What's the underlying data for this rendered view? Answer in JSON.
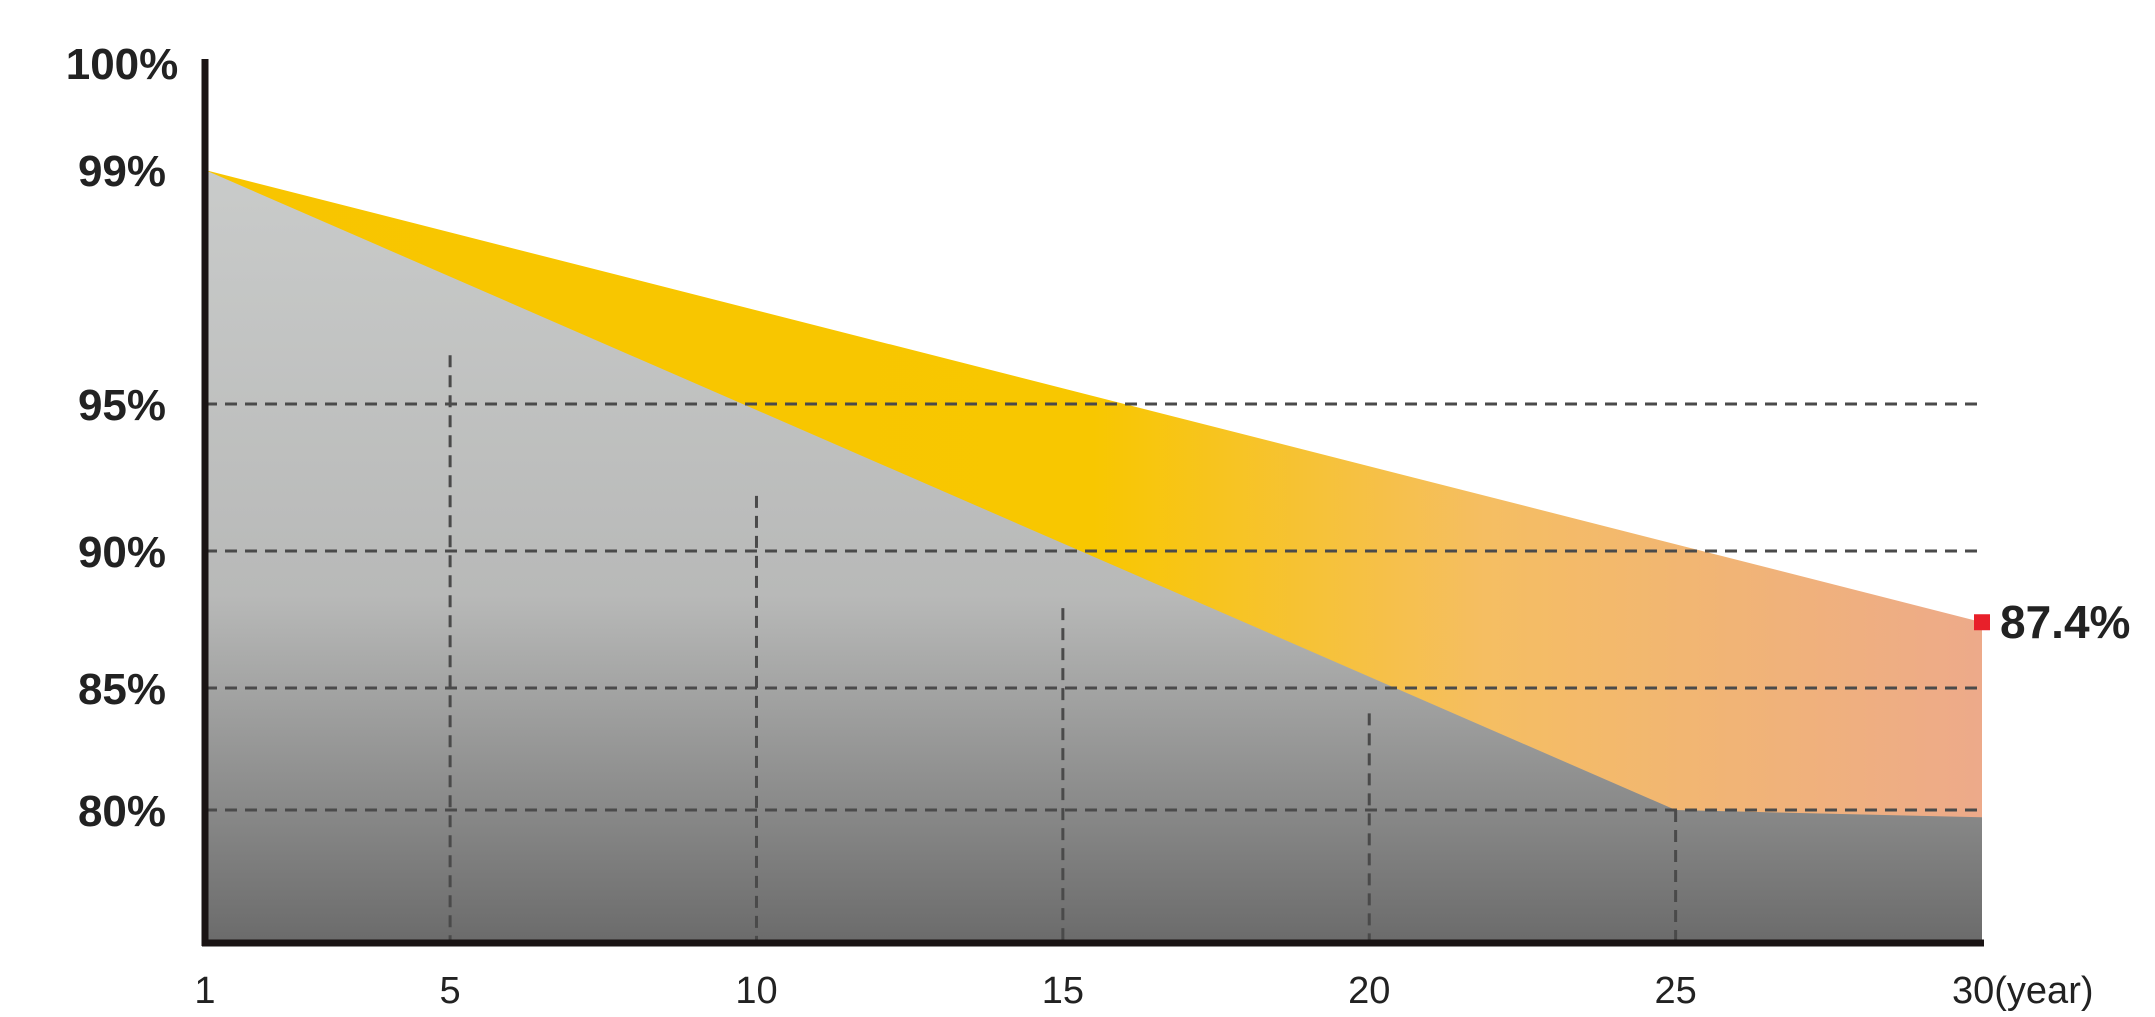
{
  "chart_data": {
    "type": "area",
    "x_unit_label": "(year)",
    "x_ticks": [
      1,
      5,
      10,
      15,
      20,
      25,
      30
    ],
    "y_ticks": [
      80,
      85,
      90,
      95,
      99,
      100
    ],
    "y_tick_labels": [
      "80%",
      "85%",
      "90%",
      "95%",
      "99%",
      "100%"
    ],
    "x_min": 1,
    "x_max": 30,
    "y_min": 75.2,
    "y_max": 100,
    "grid": true,
    "series": [
      {
        "points": [
          [
            1,
            99
          ],
          [
            30,
            87.4
          ]
        ],
        "colors": [
          "#f8c300",
          "#efae8a"
        ]
      },
      {
        "points": [
          [
            1,
            99
          ],
          [
            25,
            80
          ],
          [
            30,
            79.7
          ]
        ],
        "colors": [
          "#c7c9c8",
          "#6a6a6a"
        ]
      }
    ],
    "end_marker": {
      "value_label": "87.4%",
      "color": "#e8202a"
    }
  }
}
